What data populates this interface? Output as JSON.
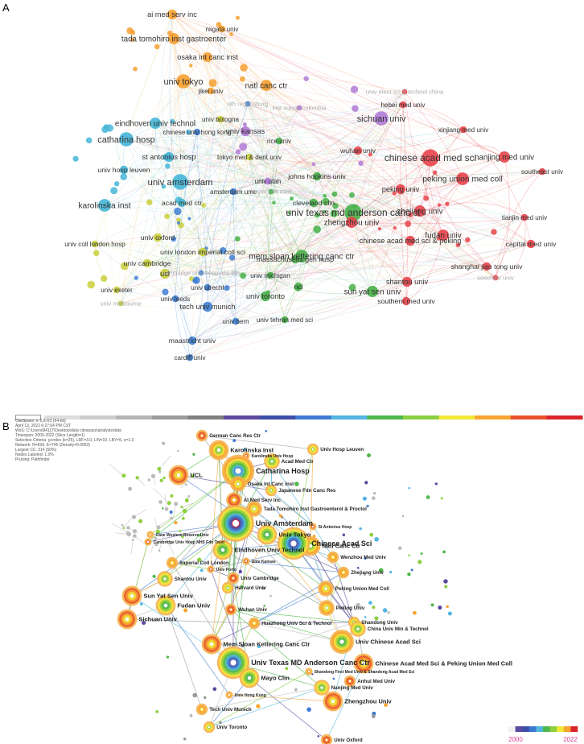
{
  "panelA": {
    "label": "A",
    "nodes": [
      {
        "label": "ai med serv inc",
        "cluster": "orange",
        "size": 4
      },
      {
        "label": "niigata univ",
        "cluster": "orange",
        "size": 2
      },
      {
        "label": "tada tomohiro inst gastroenter",
        "cluster": "orange",
        "size": 5
      },
      {
        "label": "osaka int canc inst",
        "cluster": "orange",
        "size": 4
      },
      {
        "label": "univ tokyo",
        "cluster": "orange",
        "size": 7
      },
      {
        "label": "jikei univ",
        "cluster": "orange",
        "size": 2
      },
      {
        "label": "natl canc ctr",
        "cluster": "orange",
        "size": 5
      },
      {
        "label": "oth regensburg",
        "cluster": "blue",
        "size": 1
      },
      {
        "label": "inst suisse colombia",
        "cluster": "purple",
        "size": 1
      },
      {
        "label": "univ elect sci & technol china",
        "cluster": "red",
        "size": 1
      },
      {
        "label": "hebei med univ",
        "cluster": "red",
        "size": 2
      },
      {
        "label": "sichuan univ",
        "cluster": "purple",
        "size": 7
      },
      {
        "label": "eindhoven univ technol",
        "cluster": "cyan",
        "size": 5
      },
      {
        "label": "univ bologna",
        "cluster": "yellow",
        "size": 2
      },
      {
        "label": "univ kansas",
        "cluster": "purple",
        "size": 4
      },
      {
        "label": "xinjiang med univ",
        "cluster": "red",
        "size": 2
      },
      {
        "label": "catharina hosp",
        "cluster": "cyan",
        "size": 7
      },
      {
        "label": "chinese univ hong kong",
        "cluster": "blue",
        "size": 2
      },
      {
        "label": "rice univ",
        "cluster": "green",
        "size": 2
      },
      {
        "label": "wuhan univ",
        "cluster": "red",
        "size": 3
      },
      {
        "label": "chinese acad med sci",
        "cluster": "red",
        "size": 9
      },
      {
        "label": "nanjing med univ",
        "cluster": "red",
        "size": 5
      },
      {
        "label": "st antonius hosp",
        "cluster": "cyan",
        "size": 4
      },
      {
        "label": "tokyo med & dent univ",
        "cluster": "yellow",
        "size": 2
      },
      {
        "label": "southeast univ",
        "cluster": "red",
        "size": 2
      },
      {
        "label": "univ hosp leuven",
        "cluster": "cyan",
        "size": 3
      },
      {
        "label": "univ utah",
        "cluster": "purple",
        "size": 2
      },
      {
        "label": "johns hopkins univ",
        "cluster": "green",
        "size": 3
      },
      {
        "label": "peking union med coll",
        "cluster": "red",
        "size": 6
      },
      {
        "label": "univ amsterdam",
        "cluster": "cyan",
        "size": 8
      },
      {
        "label": "amsterdam umc",
        "cluster": "blue",
        "size": 2
      },
      {
        "label": "baylor coll med",
        "cluster": "green",
        "size": 1
      },
      {
        "label": "peking univ",
        "cluster": "red",
        "size": 4
      },
      {
        "label": "acad med ctr",
        "cluster": "cyan",
        "size": 3
      },
      {
        "label": "cleveland clin",
        "cluster": "green",
        "size": 3
      },
      {
        "label": "karolinska inst",
        "cluster": "cyan",
        "size": 6
      },
      {
        "label": "univ texas md anderson canc ct",
        "cluster": "green",
        "size": 9
      },
      {
        "label": "zhengzhou univ",
        "cluster": "red",
        "size": 5
      },
      {
        "label": "zhejiang univ",
        "cluster": "red",
        "size": 5
      },
      {
        "label": "tianjin med univ",
        "cluster": "red",
        "size": 2
      },
      {
        "label": "univ oxford",
        "cluster": "yellow",
        "size": 3
      },
      {
        "label": "chinese acad med sci & peking",
        "cluster": "red",
        "size": 4
      },
      {
        "label": "fudan univ",
        "cluster": "red",
        "size": 5
      },
      {
        "label": "univ coll london hosp",
        "cluster": "yellow",
        "size": 2
      },
      {
        "label": "massachusetts gen hosp",
        "cluster": "green",
        "size": 3
      },
      {
        "label": "capital med univ",
        "cluster": "red",
        "size": 3
      },
      {
        "label": "univ london imperial coll sci",
        "cluster": "yellow",
        "size": 3
      },
      {
        "label": "mem sloan kettering canc ctr",
        "cluster": "green",
        "size": 6
      },
      {
        "label": "univ cambridge",
        "cluster": "yellow",
        "size": 3
      },
      {
        "label": "shanghai jiao tong univ",
        "cluster": "red",
        "size": 3
      },
      {
        "label": "soochow univ",
        "cluster": "red",
        "size": 1
      },
      {
        "label": "ucl",
        "cluster": "yellow",
        "size": 4
      },
      {
        "label": "cambridge univ hosp nhs fdn",
        "cluster": "blue",
        "size": 1
      },
      {
        "label": "univ michigan",
        "cluster": "green",
        "size": 2
      },
      {
        "label": "nci",
        "cluster": "green",
        "size": 3
      },
      {
        "label": "univ utrecht",
        "cluster": "blue",
        "size": 2
      },
      {
        "label": "shantou univ",
        "cluster": "red",
        "size": 4
      },
      {
        "label": "univ exeter",
        "cluster": "yellow",
        "size": 2
      },
      {
        "label": "sun yat sen univ",
        "cluster": "green",
        "size": 5
      },
      {
        "label": "univ leeds",
        "cluster": "blue",
        "size": 2
      },
      {
        "label": "univ melbourne",
        "cluster": "yellow",
        "size": 1
      },
      {
        "label": "univ toronto",
        "cluster": "green",
        "size": 4
      },
      {
        "label": "southern med univ",
        "cluster": "red",
        "size": 3
      },
      {
        "label": "tech univ munich",
        "cluster": "blue",
        "size": 4
      },
      {
        "label": "univ bern",
        "cluster": "blue",
        "size": 2
      },
      {
        "label": "univ tehran med sci",
        "cluster": "green",
        "size": 2
      },
      {
        "label": "maastricht univ",
        "cluster": "blue",
        "size": 3
      },
      {
        "label": "cardiff univ",
        "cluster": "blue",
        "size": 2
      }
    ],
    "colors": {
      "red": "#e8434a",
      "green": "#46b048",
      "blue": "#3d7fd4",
      "yellow": "#c9cf3a",
      "purple": "#b07ad6",
      "cyan": "#45b6d8",
      "orange": "#f6a030"
    }
  },
  "panelB": {
    "label": "B",
    "meta_lines": [
      "CiteSpace, v. 5.8.R3 (64-bit)",
      "April 13, 2022 6:27:04 PM CST",
      "WoS: C:\\Users\\84117\\Desktop\\data citespace\\analysis\\data",
      "Timespan: 2000-2022 (Slice Length=1)",
      "Selection Criteria: g-index (k=25), LRF=3.0, L/N=10, LBY=5, e=1.0",
      "Network: N=630, E=745 (Density=0.0053)",
      "Largest CC: 314 (50%)",
      "Nodes Labeled: 1.0%",
      "Pruning: Pathfinder"
    ],
    "timeline_colors": [
      "#dddddd",
      "#cccccc",
      "#b5b5b5",
      "#9c9c9c",
      "#808080",
      "#5c4a9e",
      "#3e4fa8",
      "#3e7ad1",
      "#53b6e0",
      "#4fb84a",
      "#8ccf3f",
      "#f2e83a",
      "#f7a531",
      "#e8512a",
      "#d9262c"
    ],
    "legend": {
      "start": "2000",
      "end": "2022"
    },
    "nodes": [
      {
        "label": "German Canc Res Ctr",
        "size": 2
      },
      {
        "label": "Karolinska Inst",
        "size": 4
      },
      {
        "label": "Univ Hosp Leuven",
        "size": 2
      },
      {
        "label": "Karolinska Univ Hosp",
        "size": 1
      },
      {
        "label": "Catharina Hosp",
        "size": 7
      },
      {
        "label": "Acad Med Ctr",
        "size": 3
      },
      {
        "label": "UCL",
        "size": 4
      },
      {
        "label": "Osaka Int Canc Inst",
        "size": 3
      },
      {
        "label": "Japanese Fdn Canc Res",
        "size": 2
      },
      {
        "label": "AI Med Serv Inc",
        "size": 3
      },
      {
        "label": "Tada Tomohiro Inst Gastroenterol & Proctol",
        "size": 3
      },
      {
        "label": "Univ Amsterdam",
        "size": 8
      },
      {
        "label": "St Antonius Hosp",
        "size": 1
      },
      {
        "label": "Case Western Reserve Univ",
        "size": 1
      },
      {
        "label": "Univ Tokyo",
        "size": 4
      },
      {
        "label": "Cambridge Univ Hosp NHS Fdn Trust",
        "size": 1
      },
      {
        "label": "Natl Canc Ctr",
        "size": 4
      },
      {
        "label": "Eindhoven Univ Technol",
        "size": 4
      },
      {
        "label": "Univ Kansas",
        "size": 1
      },
      {
        "label": "Imperial Coll London",
        "size": 2
      },
      {
        "label": "Chinese Acad Sci",
        "size": 7
      },
      {
        "label": "Univ Porto",
        "size": 1
      },
      {
        "label": "Wenzhou Med Univ",
        "size": 2
      },
      {
        "label": "Shantou Univ",
        "size": 3
      },
      {
        "label": "Univ Cambridge",
        "size": 2
      },
      {
        "label": "Zhejiang Univ",
        "size": 2
      },
      {
        "label": "Harvard Univ",
        "size": 2
      },
      {
        "label": "Sun Yat Sen Univ",
        "size": 4
      },
      {
        "label": "Peking Union Med Coll",
        "size": 3
      },
      {
        "label": "Fudan Univ",
        "size": 4
      },
      {
        "label": "Wuhan Univ",
        "size": 2
      },
      {
        "label": "Peking Univ",
        "size": 3
      },
      {
        "label": "Shandong Univ",
        "size": 2
      },
      {
        "label": "Sichuan Univ",
        "size": 4
      },
      {
        "label": "Huazhong Univ Sci & Technol",
        "size": 2
      },
      {
        "label": "China Univ Min & Technol",
        "size": 3
      },
      {
        "label": "Mem Sloan Kettering Canc Ctr",
        "size": 4
      },
      {
        "label": "Univ Chinese Acad Sci",
        "size": 5
      },
      {
        "label": "Univ Texas MD Anderson Canc Ctr",
        "size": 7
      },
      {
        "label": "Chinese Acad Med Sci & Peking Union Med Coll",
        "size": 4
      },
      {
        "label": "Shandong First Med Univ & Shandong Acad Med Sci",
        "size": 1
      },
      {
        "label": "Mayo Clin",
        "size": 4
      },
      {
        "label": "Anhui Med Univ",
        "size": 2
      },
      {
        "label": "Univ Hong Kong",
        "size": 1
      },
      {
        "label": "Nanjing Med Univ",
        "size": 3
      },
      {
        "label": "Zhengzhou Univ",
        "size": 4
      },
      {
        "label": "Tech Univ Munich",
        "size": 2
      },
      {
        "label": "Univ Toronto",
        "size": 2
      },
      {
        "label": "Univ Oxford",
        "size": 2
      }
    ]
  }
}
